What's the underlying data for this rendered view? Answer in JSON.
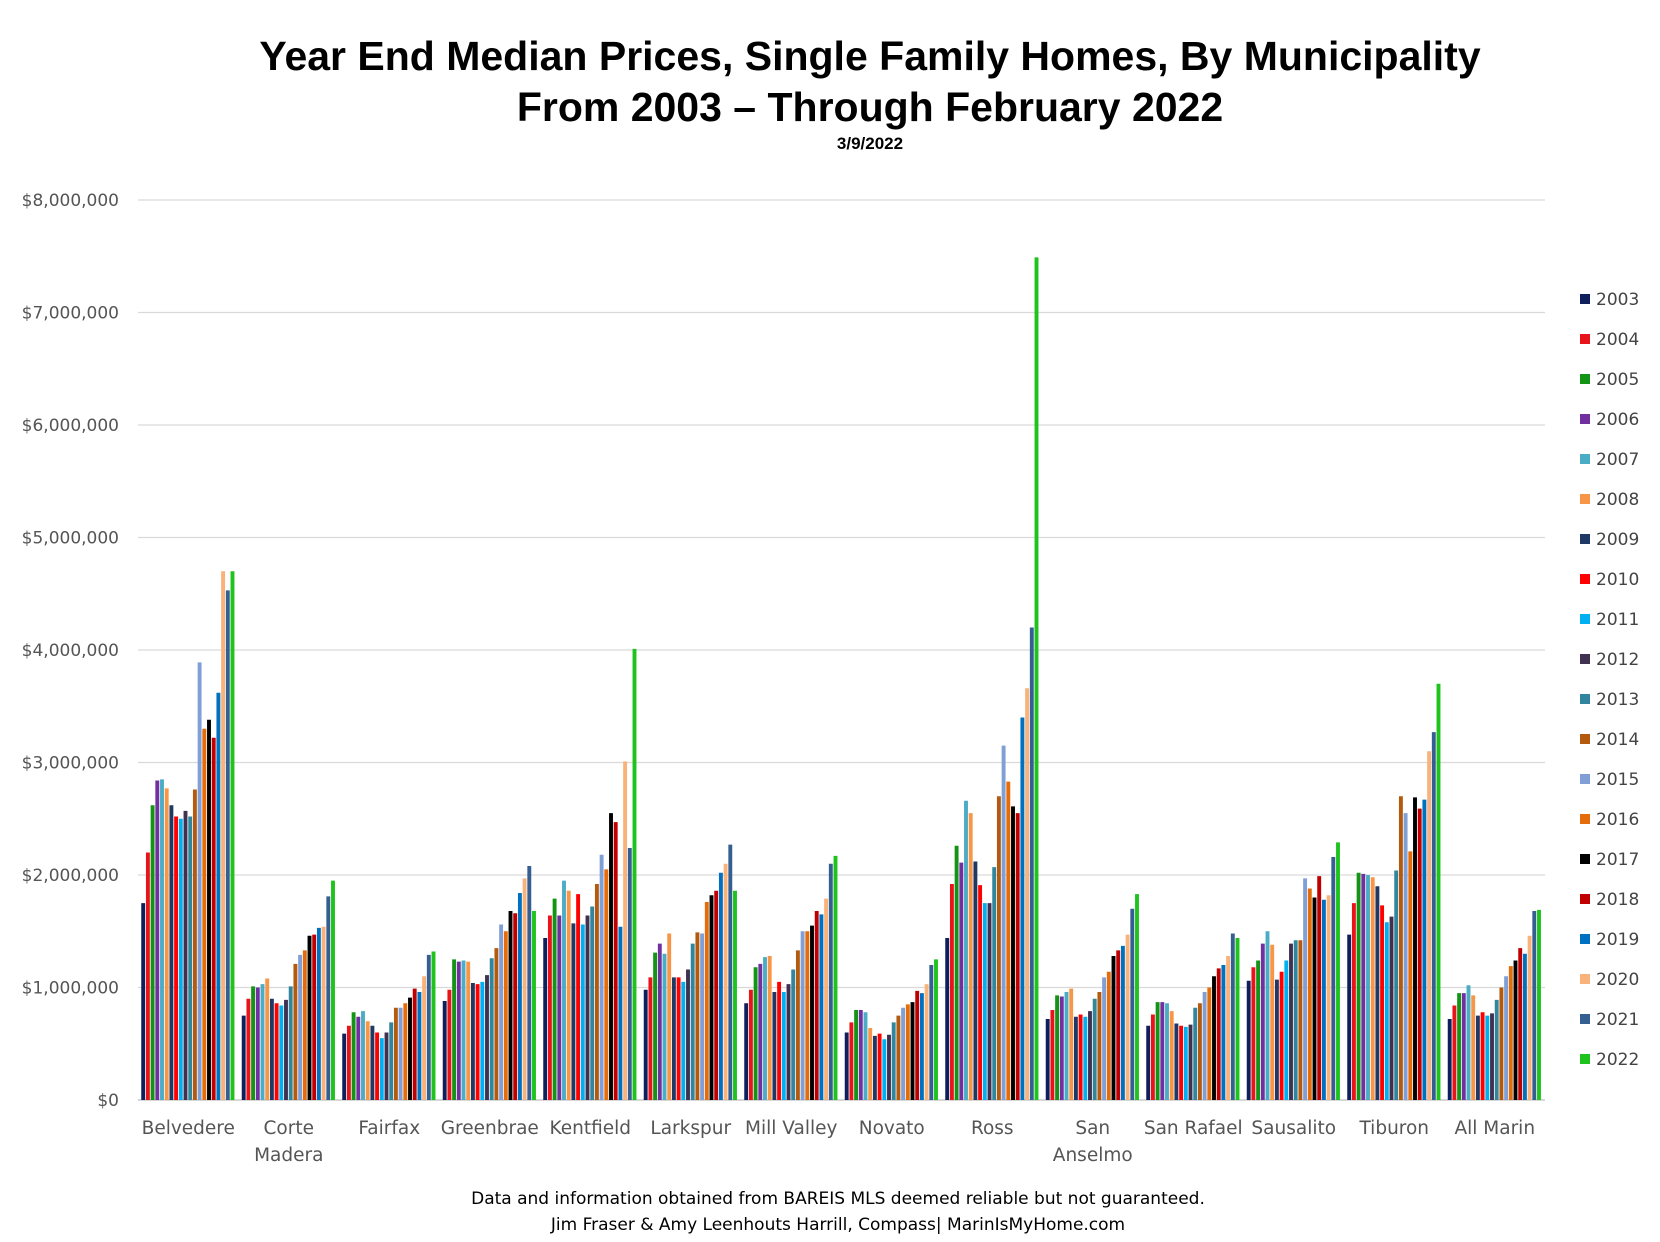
{
  "chart_data": {
    "type": "bar",
    "title": "Year End Median Prices, Single Family Homes, By Municipality",
    "title_line2": "From 2003 – Through February 2022",
    "subtitle": "3/9/2022",
    "xlabel": "",
    "ylabel": "",
    "ylim": [
      0,
      8000000
    ],
    "yticks": [
      0,
      1000000,
      2000000,
      3000000,
      4000000,
      5000000,
      6000000,
      7000000,
      8000000
    ],
    "ytick_labels": [
      "$0",
      "$1,000,000",
      "$2,000,000",
      "$3,000,000",
      "$4,000,000",
      "$5,000,000",
      "$6,000,000",
      "$7,000,000",
      "$8,000,000"
    ],
    "grid": true,
    "legend_position": "right",
    "categories": [
      "Belvedere",
      "Corte Madera",
      "Fairfax",
      "Greenbrae",
      "Kentfield",
      "Larkspur",
      "Mill Valley",
      "Novato",
      "Ross",
      "San Anselmo",
      "San Rafael",
      "Sausalito",
      "Tiburon",
      "All Marin"
    ],
    "category_lines": [
      [
        "Belvedere"
      ],
      [
        "Corte",
        "Madera"
      ],
      [
        "Fairfax"
      ],
      [
        "Greenbrae"
      ],
      [
        "Kentfield"
      ],
      [
        "Larkspur"
      ],
      [
        "Mill Valley"
      ],
      [
        "Novato"
      ],
      [
        "Ross"
      ],
      [
        "San",
        "Anselmo"
      ],
      [
        "San Rafael"
      ],
      [
        "Sausalito"
      ],
      [
        "Tiburon"
      ],
      [
        "All Marin"
      ]
    ],
    "series": [
      {
        "name": "2003",
        "color": "#0f1f5c",
        "values": [
          1750000,
          750000,
          590000,
          880000,
          1440000,
          980000,
          860000,
          600000,
          1440000,
          720000,
          660000,
          1060000,
          1470000,
          720000
        ]
      },
      {
        "name": "2004",
        "color": "#e8131b",
        "values": [
          2200000,
          900000,
          660000,
          980000,
          1640000,
          1090000,
          980000,
          690000,
          1920000,
          800000,
          760000,
          1180000,
          1750000,
          840000
        ]
      },
      {
        "name": "2005",
        "color": "#149414",
        "values": [
          2620000,
          1010000,
          780000,
          1250000,
          1790000,
          1310000,
          1180000,
          800000,
          2260000,
          930000,
          870000,
          1240000,
          2020000,
          950000
        ]
      },
      {
        "name": "2006",
        "color": "#7030a0",
        "values": [
          2840000,
          1000000,
          740000,
          1230000,
          1640000,
          1390000,
          1210000,
          800000,
          2110000,
          920000,
          870000,
          1390000,
          2010000,
          950000
        ]
      },
      {
        "name": "2007",
        "color": "#4bacc6",
        "values": [
          2850000,
          1030000,
          790000,
          1240000,
          1950000,
          1300000,
          1270000,
          780000,
          2660000,
          960000,
          860000,
          1500000,
          2000000,
          1020000
        ]
      },
      {
        "name": "2008",
        "color": "#f79646",
        "values": [
          2770000,
          1080000,
          700000,
          1230000,
          1860000,
          1480000,
          1280000,
          640000,
          2550000,
          990000,
          790000,
          1380000,
          1980000,
          930000
        ]
      },
      {
        "name": "2009",
        "color": "#1f3864",
        "values": [
          2620000,
          900000,
          660000,
          1040000,
          1570000,
          1090000,
          960000,
          570000,
          2120000,
          740000,
          680000,
          1070000,
          1900000,
          750000
        ]
      },
      {
        "name": "2010",
        "color": "#ff0000",
        "values": [
          2520000,
          860000,
          600000,
          1030000,
          1830000,
          1090000,
          1050000,
          590000,
          1910000,
          760000,
          660000,
          1140000,
          1730000,
          780000
        ]
      },
      {
        "name": "2011",
        "color": "#00b0f0",
        "values": [
          2500000,
          840000,
          550000,
          1050000,
          1560000,
          1050000,
          960000,
          540000,
          1750000,
          740000,
          650000,
          1240000,
          1580000,
          750000
        ]
      },
      {
        "name": "2012",
        "color": "#403151",
        "values": [
          2570000,
          890000,
          600000,
          1110000,
          1640000,
          1160000,
          1030000,
          580000,
          1750000,
          790000,
          670000,
          1390000,
          1630000,
          770000
        ]
      },
      {
        "name": "2013",
        "color": "#31859c",
        "values": [
          2520000,
          1010000,
          690000,
          1260000,
          1720000,
          1390000,
          1160000,
          690000,
          2070000,
          900000,
          820000,
          1420000,
          2040000,
          890000
        ]
      },
      {
        "name": "2014",
        "color": "#b35a0e",
        "values": [
          2760000,
          1210000,
          820000,
          1350000,
          1920000,
          1490000,
          1330000,
          750000,
          2700000,
          960000,
          860000,
          1420000,
          2700000,
          1000000
        ]
      },
      {
        "name": "2015",
        "color": "#7f9fd6",
        "values": [
          3890000,
          1290000,
          820000,
          1560000,
          2180000,
          1480000,
          1500000,
          820000,
          3150000,
          1090000,
          960000,
          1970000,
          2550000,
          1100000
        ]
      },
      {
        "name": "2016",
        "color": "#e46c0a",
        "values": [
          3300000,
          1330000,
          860000,
          1500000,
          2050000,
          1760000,
          1500000,
          850000,
          2830000,
          1140000,
          1000000,
          1880000,
          2210000,
          1190000
        ]
      },
      {
        "name": "2017",
        "color": "#000000",
        "values": [
          3380000,
          1460000,
          910000,
          1680000,
          2550000,
          1820000,
          1550000,
          870000,
          2610000,
          1280000,
          1100000,
          1800000,
          2690000,
          1240000
        ]
      },
      {
        "name": "2018",
        "color": "#c00000",
        "values": [
          3220000,
          1470000,
          990000,
          1660000,
          2470000,
          1860000,
          1680000,
          970000,
          2550000,
          1330000,
          1170000,
          1990000,
          2590000,
          1350000
        ]
      },
      {
        "name": "2019",
        "color": "#0070c0",
        "values": [
          3620000,
          1530000,
          960000,
          1840000,
          1540000,
          2020000,
          1650000,
          950000,
          3400000,
          1370000,
          1200000,
          1780000,
          2670000,
          1300000
        ]
      },
      {
        "name": "2020",
        "color": "#fab27b",
        "values": [
          4700000,
          1540000,
          1100000,
          1970000,
          3010000,
          2100000,
          1790000,
          1030000,
          3660000,
          1470000,
          1280000,
          1820000,
          3100000,
          1460000
        ]
      },
      {
        "name": "2021",
        "color": "#365f91",
        "values": [
          4530000,
          1810000,
          1290000,
          2080000,
          2240000,
          2270000,
          2100000,
          1200000,
          4200000,
          1700000,
          1480000,
          2160000,
          3270000,
          1680000
        ]
      },
      {
        "name": "2022",
        "color": "#1ec31e",
        "values": [
          4700000,
          1950000,
          1320000,
          1680000,
          4010000,
          1860000,
          2170000,
          1250000,
          7490000,
          1830000,
          1440000,
          2290000,
          3700000,
          1690000
        ]
      }
    ]
  },
  "footer": {
    "line1": "Data and information obtained from BAREIS MLS deemed reliable but not guaranteed.",
    "line2": "Jim Fraser & Amy Leenhouts Harrill, Compass| MarinIsMyHome.com"
  }
}
